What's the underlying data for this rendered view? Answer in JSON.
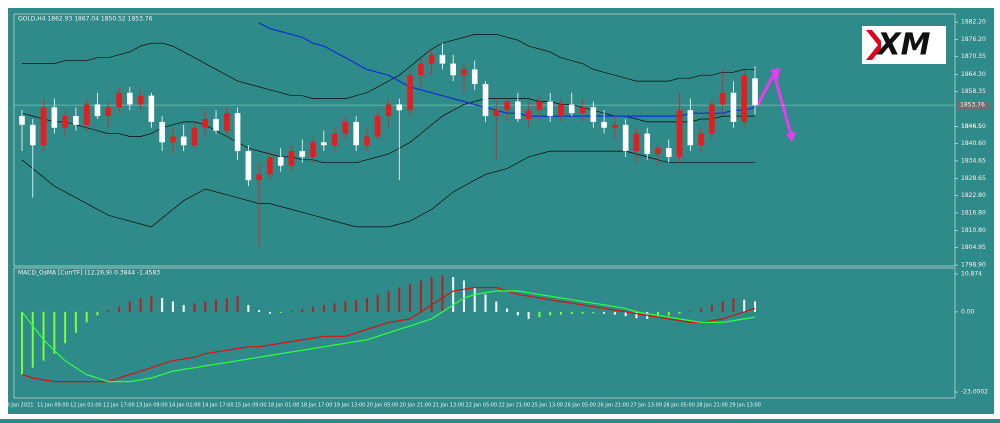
{
  "chart_data": [
    {
      "type": "candlestick",
      "title": "GOLD,H4  1862.93 1867.04 1850.52 1853.76",
      "logo": "XM",
      "x_labels": [
        "8 Jan 2021",
        "11 Jan 09:00",
        "12 Jan 01:00",
        "12 Jan 17:00",
        "13 Jan 09:00",
        "14 Jan 01:00",
        "14 Jan 17:00",
        "15 Jan 09:00",
        "18 Jan 01:00",
        "18 Jan 17:00",
        "19 Jan 13:00",
        "20 Jan 05:00",
        "20 Jan 21:00",
        "21 Jan 13:00",
        "22 Jan 05:00",
        "22 Jan 21:00",
        "25 Jan 13:00",
        "26 Jan 05:00",
        "26 Jan 21:00",
        "27 Jan 13:00",
        "28 Jan 05:00",
        "28 Jan 21:00",
        "29 Jan 13:00"
      ],
      "ohlc": [
        [
          1850,
          1852,
          1838,
          1847
        ],
        [
          1847,
          1849,
          1822,
          1840
        ],
        [
          1840,
          1856,
          1838,
          1853
        ],
        [
          1853,
          1856,
          1844,
          1846
        ],
        [
          1846,
          1852,
          1843,
          1850
        ],
        [
          1850,
          1853,
          1845,
          1847
        ],
        [
          1847,
          1856,
          1845,
          1854
        ],
        [
          1854,
          1858,
          1849,
          1850
        ],
        [
          1850,
          1855,
          1846,
          1853
        ],
        [
          1853,
          1860,
          1851,
          1858
        ],
        [
          1858,
          1860,
          1852,
          1854
        ],
        [
          1854,
          1859,
          1852,
          1857
        ],
        [
          1857,
          1858,
          1846,
          1848
        ],
        [
          1848,
          1850,
          1838,
          1841
        ],
        [
          1841,
          1846,
          1837,
          1843
        ],
        [
          1843,
          1847,
          1838,
          1840
        ],
        [
          1840,
          1848,
          1839,
          1846
        ],
        [
          1846,
          1852,
          1843,
          1849
        ],
        [
          1849,
          1852,
          1844,
          1845
        ],
        [
          1845,
          1853,
          1843,
          1851
        ],
        [
          1851,
          1853,
          1835,
          1838
        ],
        [
          1838,
          1840,
          1826,
          1828
        ],
        [
          1828,
          1834,
          1805,
          1830
        ],
        [
          1830,
          1838,
          1828,
          1836
        ],
        [
          1836,
          1839,
          1831,
          1833
        ],
        [
          1833,
          1840,
          1831,
          1838
        ],
        [
          1838,
          1842,
          1834,
          1836
        ],
        [
          1836,
          1843,
          1834,
          1841
        ],
        [
          1841,
          1845,
          1838,
          1840
        ],
        [
          1840,
          1846,
          1838,
          1844
        ],
        [
          1844,
          1850,
          1842,
          1848
        ],
        [
          1848,
          1850,
          1838,
          1840
        ],
        [
          1840,
          1846,
          1838,
          1843
        ],
        [
          1843,
          1852,
          1842,
          1850
        ],
        [
          1850,
          1856,
          1846,
          1854
        ],
        [
          1854,
          1856,
          1828,
          1852
        ],
        [
          1852,
          1866,
          1850,
          1864
        ],
        [
          1864,
          1870,
          1860,
          1868
        ],
        [
          1868,
          1873,
          1864,
          1871
        ],
        [
          1871,
          1875,
          1866,
          1868
        ],
        [
          1868,
          1871,
          1862,
          1864
        ],
        [
          1864,
          1868,
          1858,
          1866
        ],
        [
          1866,
          1869,
          1859,
          1861
        ],
        [
          1861,
          1862,
          1848,
          1850
        ],
        [
          1850,
          1856,
          1835,
          1852
        ],
        [
          1852,
          1856,
          1848,
          1855
        ],
        [
          1855,
          1858,
          1848,
          1849
        ],
        [
          1849,
          1855,
          1846,
          1852
        ],
        [
          1852,
          1857,
          1849,
          1855
        ],
        [
          1855,
          1858,
          1848,
          1850
        ],
        [
          1850,
          1856,
          1848,
          1854
        ],
        [
          1854,
          1858,
          1850,
          1851
        ],
        [
          1851,
          1856,
          1848,
          1853
        ],
        [
          1853,
          1855,
          1846,
          1848
        ],
        [
          1848,
          1852,
          1844,
          1846
        ],
        [
          1846,
          1850,
          1842,
          1847
        ],
        [
          1847,
          1849,
          1836,
          1838
        ],
        [
          1838,
          1846,
          1834,
          1844
        ],
        [
          1844,
          1846,
          1835,
          1837
        ],
        [
          1837,
          1840,
          1833,
          1839
        ],
        [
          1839,
          1842,
          1834,
          1836
        ],
        [
          1836,
          1858,
          1834,
          1852
        ],
        [
          1852,
          1856,
          1838,
          1840
        ],
        [
          1840,
          1846,
          1838,
          1844
        ],
        [
          1844,
          1856,
          1842,
          1854
        ],
        [
          1854,
          1866,
          1850,
          1858
        ],
        [
          1858,
          1862,
          1846,
          1848
        ],
        [
          1848,
          1866,
          1846,
          1864
        ],
        [
          1862.93,
          1867.04,
          1850.52,
          1853.76
        ]
      ],
      "up_color": "#e41e1e",
      "down_color": "#ffffff",
      "lines": [
        {
          "color": "#0a0a0a",
          "values": [
            1868,
            1868,
            1868,
            1868,
            1869,
            1869,
            1869,
            1870,
            1870,
            1871,
            1872,
            1874,
            1875,
            1875,
            1874,
            1872,
            1870,
            1868,
            1866,
            1864,
            1862,
            1861,
            1860,
            1859,
            1858,
            1857,
            1857,
            1856,
            1856,
            1856,
            1856,
            1857,
            1858,
            1860,
            1862,
            1864,
            1867,
            1870,
            1873,
            1875,
            1876,
            1877,
            1878,
            1878,
            1878,
            1877,
            1876,
            1874,
            1873,
            1872,
            1870,
            1869,
            1868,
            1866,
            1865,
            1864,
            1863,
            1862,
            1862,
            1862,
            1862,
            1863,
            1863,
            1864,
            1864,
            1865,
            1865,
            1866,
            1866
          ]
        },
        {
          "color": "#0a0a0a",
          "values": [
            1851,
            1850,
            1849,
            1848,
            1848,
            1847,
            1846,
            1845,
            1844,
            1844,
            1843,
            1843,
            1844,
            1846,
            1847,
            1848,
            1848,
            1847,
            1845,
            1843,
            1841,
            1839,
            1838,
            1837,
            1836,
            1836,
            1835,
            1835,
            1834,
            1834,
            1834,
            1834,
            1835,
            1836,
            1837,
            1839,
            1841,
            1844,
            1847,
            1850,
            1852,
            1854,
            1855,
            1856,
            1856,
            1856,
            1856,
            1856,
            1855,
            1855,
            1854,
            1854,
            1853,
            1852,
            1851,
            1850,
            1850,
            1849,
            1848,
            1848,
            1848,
            1848,
            1848,
            1849,
            1849,
            1850,
            1850,
            1850,
            1850
          ]
        },
        {
          "color": "#0a0a0a",
          "values": [
            1835,
            1832,
            1829,
            1826,
            1824,
            1822,
            1820,
            1818,
            1816,
            1815,
            1814,
            1813,
            1812,
            1815,
            1818,
            1821,
            1823,
            1825,
            1824,
            1823,
            1822,
            1821,
            1820,
            1820,
            1819,
            1818,
            1817,
            1816,
            1815,
            1814,
            1813,
            1812,
            1812,
            1812,
            1812,
            1813,
            1814,
            1816,
            1818,
            1821,
            1824,
            1826,
            1828,
            1830,
            1831,
            1832,
            1834,
            1836,
            1837,
            1838,
            1838,
            1838,
            1838,
            1838,
            1838,
            1838,
            1838,
            1837,
            1836,
            1835,
            1834,
            1834,
            1834,
            1834,
            1834,
            1834,
            1834,
            1834,
            1834
          ]
        },
        {
          "color": "#1030d8",
          "values": [
            null,
            null,
            null,
            null,
            null,
            null,
            null,
            null,
            null,
            null,
            null,
            null,
            null,
            null,
            null,
            null,
            null,
            null,
            null,
            null,
            null,
            null,
            1882,
            1880,
            1879,
            1878,
            1877,
            1875,
            1874,
            1872,
            1870,
            1868,
            1866,
            1865,
            1864,
            1862,
            1860,
            1859,
            1858,
            1857,
            1856,
            1855,
            1854,
            1853,
            1852,
            1851,
            1851,
            1850,
            1850,
            1850,
            1850,
            1850,
            1850,
            1850,
            1850,
            1850,
            1850,
            1850,
            1850,
            1850,
            1850,
            1850,
            1851,
            1851,
            1851,
            1851,
            1852,
            1852,
            1853
          ]
        }
      ],
      "price_line": 1853.76,
      "ylim": [
        1798.6,
        1885
      ],
      "yticks": [
        {
          "value": 1882.2,
          "label": "1882.20"
        },
        {
          "value": 1876.2,
          "label": "1876.20"
        },
        1870.35,
        {
          "value": 1864.3,
          "label": "1864.30"
        },
        1858.35,
        1846.5,
        {
          "value": 1846.5,
          "label": "1846.50"
        },
        {
          "value": 1840.6,
          "label": "1840.60"
        },
        1834.65,
        1828.65,
        {
          "value": 1822.8,
          "label": "1822.80"
        },
        {
          "value": 1816.8,
          "label": "1816.80"
        },
        {
          "value": 1810.8,
          "label": "1810.80"
        },
        1804.95,
        {
          "value": 1798.9,
          "label": "1798.90"
        }
      ]
    },
    {
      "type": "macd",
      "title": "MACD_OsMA [CurrTF] (12,26,9) 0.3844 -1.4583",
      "values": [
        -18,
        -16,
        -14,
        -12,
        -9,
        -6,
        -3,
        -1,
        0.5,
        1.5,
        3,
        4,
        4.5,
        4,
        3,
        2,
        2.5,
        3,
        3.5,
        4,
        4.5,
        2,
        0.5,
        -0.5,
        -0.3,
        0.3,
        0.8,
        1.5,
        2,
        2.5,
        3,
        3.5,
        4,
        5,
        6,
        7,
        8,
        9,
        10,
        10.5,
        10,
        9,
        7,
        5,
        3,
        1,
        -1,
        -2,
        -1.5,
        -1,
        -0.8,
        -0.6,
        -0.5,
        -0.4,
        -0.5,
        -0.8,
        -1.2,
        -1.8,
        -2,
        -1.5,
        -1,
        -0.5,
        0.3,
        1,
        2,
        3,
        4,
        3.5,
        3
      ],
      "rise_color": "#b52020",
      "fall_color": "#ffffff",
      "neg_rise_color": "#7cff3a",
      "series": [
        {
          "color": "#d81010",
          "values": [
            -18,
            -19,
            -19.5,
            -20,
            -20,
            -20,
            -20,
            -20,
            -20,
            -19,
            -18,
            -17,
            -16,
            -15,
            -14,
            -13.5,
            -13,
            -12,
            -11.5,
            -11,
            -10.5,
            -10,
            -10,
            -9.5,
            -9,
            -8.5,
            -8,
            -7.5,
            -7,
            -7,
            -7,
            -6,
            -5,
            -4,
            -3,
            -2.5,
            -2,
            0,
            2,
            4,
            6,
            6.5,
            7,
            7,
            7,
            6,
            5,
            4.5,
            4,
            3.5,
            3,
            2.5,
            2,
            1.5,
            1,
            0.5,
            0,
            -0.5,
            -1,
            -1.5,
            -2,
            -2.5,
            -3,
            -3,
            -2.5,
            -2,
            -1,
            0,
            1
          ]
        },
        {
          "color": "#30ff40",
          "values": [
            0,
            -4,
            -8,
            -11,
            -14,
            -16,
            -18,
            -19,
            -20,
            -20,
            -20,
            -19.5,
            -19,
            -18,
            -17,
            -16.5,
            -16,
            -15.5,
            -15,
            -14.5,
            -14,
            -13.5,
            -13,
            -12.5,
            -12,
            -11.5,
            -11,
            -10.5,
            -10,
            -9.5,
            -9,
            -8.5,
            -8,
            -7,
            -6,
            -5,
            -4,
            -3,
            -2,
            0,
            2,
            4,
            5,
            5.5,
            6,
            6,
            6,
            5.5,
            5,
            4.5,
            4,
            3.5,
            3,
            2.5,
            2,
            1.5,
            1,
            0,
            -0.5,
            -1,
            -1.5,
            -2,
            -2.5,
            -3,
            -3,
            -3,
            -2.5,
            -2,
            -1.5
          ]
        }
      ],
      "ylim": [
        -24.7,
        12.6
      ],
      "yticks": [
        10.874,
        {
          "value": 0,
          "label": "0.00"
        },
        -23.0002
      ]
    }
  ]
}
